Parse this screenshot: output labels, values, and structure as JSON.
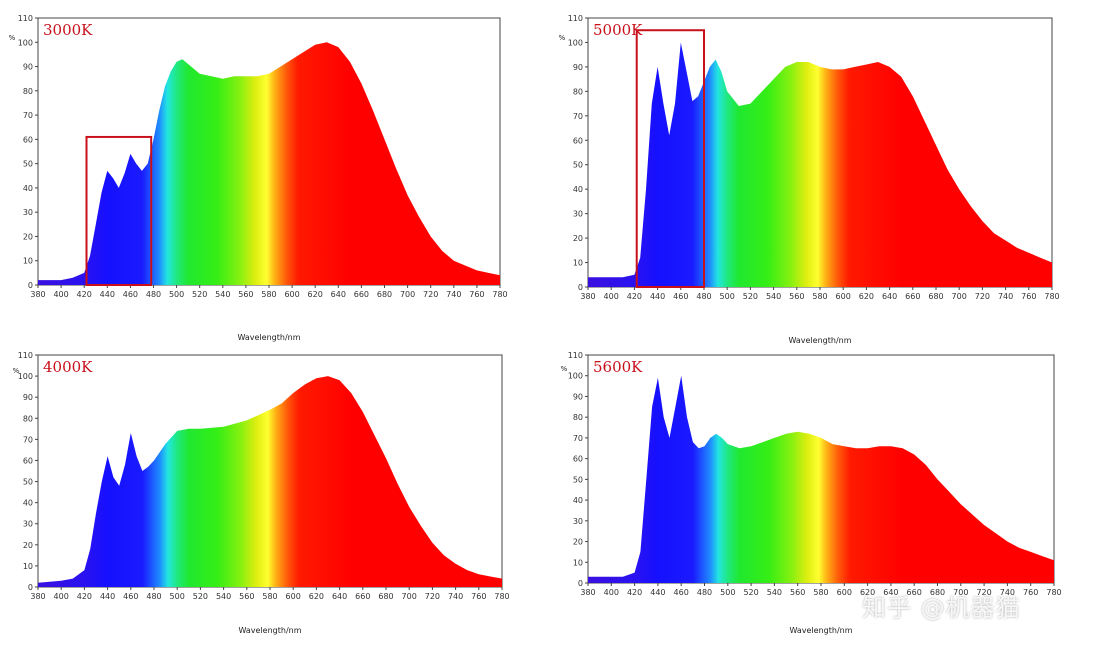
{
  "colors": {
    "highlight_box": "#c8101a",
    "label": "#c8101a"
  },
  "watermark": "知乎 @机器猫",
  "chart_data": [
    {
      "type": "area",
      "title": "3000K",
      "xlabel": "Wavelength/nm",
      "ylabel": "%",
      "xlim": [
        380,
        780
      ],
      "ylim": [
        0,
        110
      ],
      "xticks": [
        380,
        400,
        420,
        440,
        460,
        480,
        500,
        520,
        540,
        560,
        580,
        600,
        620,
        640,
        660,
        680,
        700,
        720,
        740,
        760,
        780
      ],
      "yticks": [
        0,
        10,
        20,
        30,
        40,
        50,
        60,
        70,
        80,
        90,
        100,
        110
      ],
      "highlight": [
        422,
        478
      ],
      "x": [
        380,
        400,
        410,
        420,
        425,
        430,
        435,
        440,
        445,
        450,
        455,
        460,
        465,
        470,
        475,
        480,
        485,
        490,
        495,
        500,
        505,
        510,
        520,
        530,
        540,
        550,
        560,
        570,
        580,
        590,
        600,
        610,
        620,
        630,
        640,
        650,
        660,
        670,
        680,
        690,
        700,
        710,
        720,
        730,
        740,
        750,
        760,
        770,
        780
      ],
      "values": [
        2,
        2,
        3,
        5,
        12,
        25,
        38,
        47,
        44,
        40,
        46,
        54,
        50,
        47,
        50,
        60,
        72,
        82,
        88,
        92,
        93,
        91,
        87,
        86,
        85,
        86,
        86,
        86,
        87,
        90,
        93,
        96,
        99,
        100,
        98,
        92,
        83,
        72,
        60,
        48,
        37,
        28,
        20,
        14,
        10,
        8,
        6,
        5,
        4
      ]
    },
    {
      "type": "area",
      "title": "5000K",
      "xlabel": "Wavelength/nm",
      "ylabel": "%",
      "xlim": [
        380,
        780
      ],
      "ylim": [
        0,
        110
      ],
      "xticks": [
        380,
        400,
        420,
        440,
        460,
        480,
        500,
        520,
        540,
        560,
        580,
        600,
        620,
        640,
        660,
        680,
        700,
        720,
        740,
        760,
        780
      ],
      "yticks": [
        0,
        10,
        20,
        30,
        40,
        50,
        60,
        70,
        80,
        90,
        100,
        110
      ],
      "highlight": [
        422,
        480
      ],
      "x": [
        380,
        400,
        410,
        420,
        425,
        430,
        435,
        440,
        445,
        450,
        455,
        460,
        465,
        470,
        475,
        480,
        485,
        490,
        495,
        500,
        510,
        520,
        530,
        540,
        550,
        560,
        570,
        580,
        590,
        600,
        610,
        620,
        630,
        640,
        650,
        660,
        670,
        680,
        690,
        700,
        710,
        720,
        730,
        740,
        750,
        760,
        770,
        780
      ],
      "values": [
        4,
        4,
        4,
        5,
        12,
        40,
        75,
        90,
        75,
        62,
        75,
        100,
        88,
        76,
        78,
        84,
        90,
        93,
        88,
        80,
        74,
        75,
        80,
        85,
        90,
        92,
        92,
        90,
        89,
        89,
        90,
        91,
        92,
        90,
        86,
        78,
        68,
        58,
        48,
        40,
        33,
        27,
        22,
        19,
        16,
        14,
        12,
        10
      ]
    },
    {
      "type": "area",
      "title": "4000K",
      "xlabel": "Wavelength/nm",
      "ylabel": "%",
      "xlim": [
        380,
        780
      ],
      "ylim": [
        0,
        110
      ],
      "xticks": [
        380,
        400,
        420,
        440,
        460,
        480,
        500,
        520,
        540,
        560,
        580,
        600,
        620,
        640,
        660,
        680,
        700,
        720,
        740,
        760,
        780
      ],
      "yticks": [
        0,
        10,
        20,
        30,
        40,
        50,
        60,
        70,
        80,
        90,
        100,
        110
      ],
      "x": [
        380,
        400,
        410,
        420,
        425,
        430,
        435,
        440,
        445,
        450,
        455,
        460,
        465,
        470,
        475,
        480,
        490,
        500,
        510,
        520,
        540,
        560,
        580,
        590,
        600,
        610,
        620,
        630,
        640,
        650,
        660,
        670,
        680,
        690,
        700,
        710,
        720,
        730,
        740,
        750,
        760,
        770,
        780
      ],
      "values": [
        2,
        3,
        4,
        8,
        18,
        35,
        50,
        62,
        52,
        48,
        58,
        73,
        62,
        55,
        57,
        60,
        68,
        74,
        75,
        75,
        76,
        79,
        84,
        87,
        92,
        96,
        99,
        100,
        98,
        92,
        83,
        72,
        61,
        49,
        38,
        29,
        21,
        15,
        11,
        8,
        6,
        5,
        4
      ]
    },
    {
      "type": "area",
      "title": "5600K",
      "xlabel": "Wavelength/nm",
      "ylabel": "%",
      "xlim": [
        380,
        780
      ],
      "ylim": [
        0,
        110
      ],
      "xticks": [
        380,
        400,
        420,
        440,
        460,
        480,
        500,
        520,
        540,
        560,
        580,
        600,
        620,
        640,
        660,
        680,
        700,
        720,
        740,
        760,
        780
      ],
      "yticks": [
        0,
        10,
        20,
        30,
        40,
        50,
        60,
        70,
        80,
        90,
        100,
        110
      ],
      "x": [
        380,
        400,
        410,
        420,
        425,
        430,
        435,
        440,
        445,
        450,
        455,
        460,
        465,
        470,
        475,
        480,
        485,
        490,
        495,
        500,
        510,
        520,
        530,
        540,
        550,
        560,
        570,
        580,
        590,
        600,
        610,
        620,
        630,
        640,
        650,
        660,
        670,
        680,
        690,
        700,
        710,
        720,
        730,
        740,
        750,
        760,
        770,
        780
      ],
      "values": [
        3,
        3,
        3,
        5,
        15,
        50,
        85,
        99,
        80,
        70,
        85,
        100,
        80,
        68,
        65,
        66,
        70,
        72,
        70,
        67,
        65,
        66,
        68,
        70,
        72,
        73,
        72,
        70,
        67,
        66,
        65,
        65,
        66,
        66,
        65,
        62,
        57,
        50,
        44,
        38,
        33,
        28,
        24,
        20,
        17,
        15,
        13,
        11
      ]
    }
  ]
}
